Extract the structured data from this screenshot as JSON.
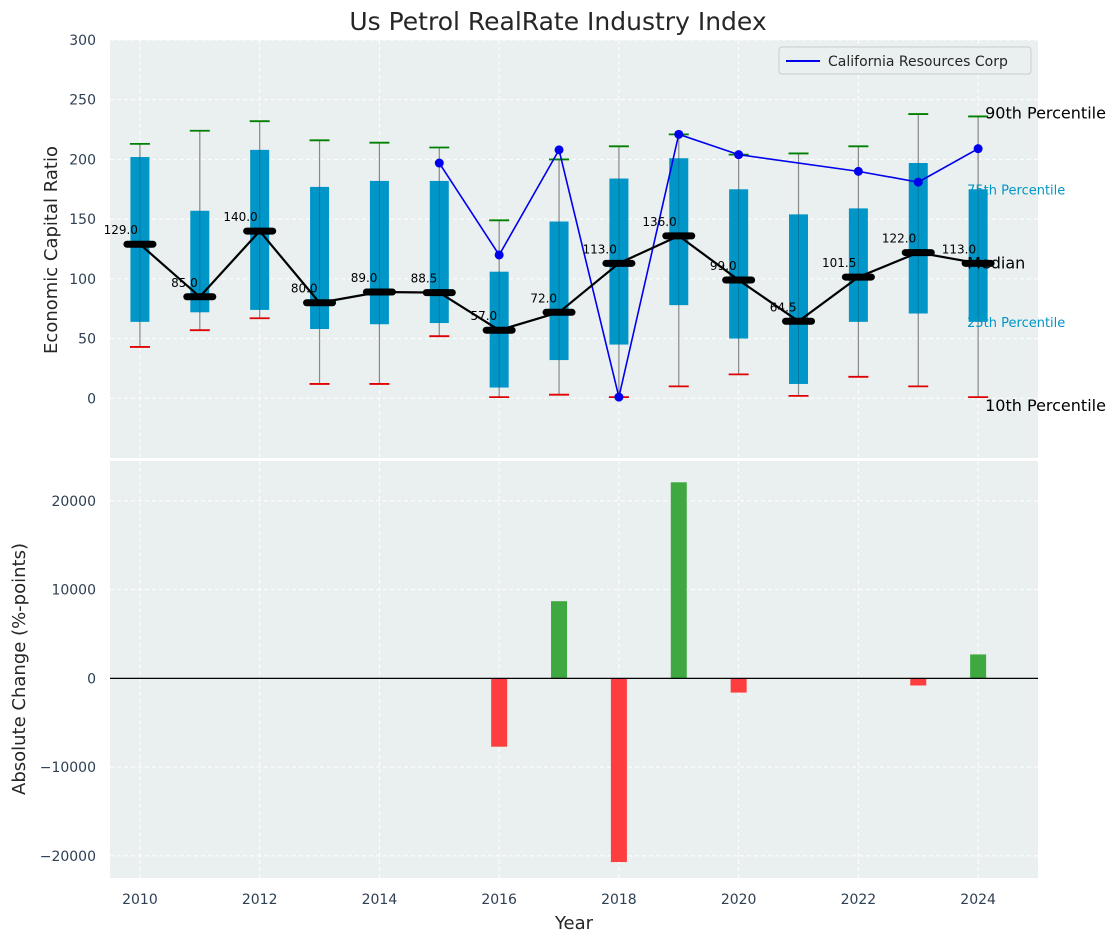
{
  "chart_data": [
    {
      "type": "box",
      "title": "Us Petrol RealRate Industry Index",
      "xlabel": "",
      "ylabel": "Economic Capital Ratio",
      "ylim": [
        -50,
        300
      ],
      "yticks": [
        0,
        50,
        100,
        150,
        200,
        250,
        300
      ],
      "xlim": [
        2009.5,
        2025
      ],
      "grid": true,
      "legend": {
        "position": "top-right",
        "entries": [
          "California Resources Corp"
        ]
      },
      "years": [
        2010,
        2011,
        2012,
        2013,
        2014,
        2015,
        2016,
        2017,
        2018,
        2019,
        2020,
        2021,
        2022,
        2023,
        2024
      ],
      "p10": [
        43,
        57,
        67,
        12,
        12,
        52,
        1,
        3,
        1,
        10,
        20,
        2,
        18,
        10,
        1
      ],
      "p25": [
        64,
        72,
        74,
        58,
        62,
        63,
        9,
        32,
        45,
        78,
        50,
        12,
        64,
        71,
        64
      ],
      "median": [
        129.0,
        85.0,
        140.0,
        80.0,
        89.0,
        88.5,
        57.0,
        72.0,
        113.0,
        136.0,
        99.0,
        64.5,
        101.5,
        122.0,
        113.0
      ],
      "median_labels": [
        "129.0",
        "85.0",
        "140.0",
        "80.0",
        "89.0",
        "88.5",
        "57.0",
        "72.0",
        "113.0",
        "136.0",
        "99.0",
        "64.5",
        "101.5",
        "122.0",
        "113.0"
      ],
      "p75": [
        202,
        157,
        208,
        177,
        182,
        182,
        106,
        148,
        184,
        201,
        175,
        154,
        159,
        197,
        175
      ],
      "p90": [
        213,
        224,
        232,
        216,
        214,
        210,
        149,
        200,
        211,
        221,
        204,
        205,
        211,
        238,
        236
      ],
      "company": {
        "name": "California Resources Corp",
        "years": [
          2015,
          2016,
          2017,
          2018,
          2019,
          2020,
          2022,
          2023,
          2024
        ],
        "values": [
          197,
          120,
          208,
          1,
          221,
          204,
          190,
          181,
          209
        ]
      },
      "annotations": {
        "p90": "90th Percentile",
        "p75": "75th Percentile",
        "median": "Median",
        "p25": "25th Percentile",
        "p10": "10th Percentile"
      }
    },
    {
      "type": "bar",
      "xlabel": "Year",
      "ylabel": "Absolute Change (%-points)",
      "ylim": [
        -22500,
        24500
      ],
      "yticks": [
        -20000,
        -10000,
        0,
        10000,
        20000
      ],
      "ytick_labels": [
        "−20000",
        "−10000",
        "0",
        "10000",
        "20000"
      ],
      "xticks": [
        2010,
        2012,
        2014,
        2016,
        2018,
        2020,
        2022,
        2024
      ],
      "grid": true,
      "positive_color": "#2ca02c",
      "negative_color": "#ff2a2a",
      "x": [
        2016,
        2017,
        2018,
        2019,
        2020,
        2023,
        2024
      ],
      "values": [
        -7700,
        8700,
        -20700,
        22100,
        -1600,
        -800,
        2700
      ]
    }
  ],
  "colors": {
    "axes_bg": "#eaeff0",
    "box": "#0096c7",
    "whisker": "#888888",
    "p90_cap": "#008000",
    "p10_cap": "#e00000",
    "median": "#000000",
    "company_line": "#0000ee",
    "tick_text": "#2e4053"
  }
}
